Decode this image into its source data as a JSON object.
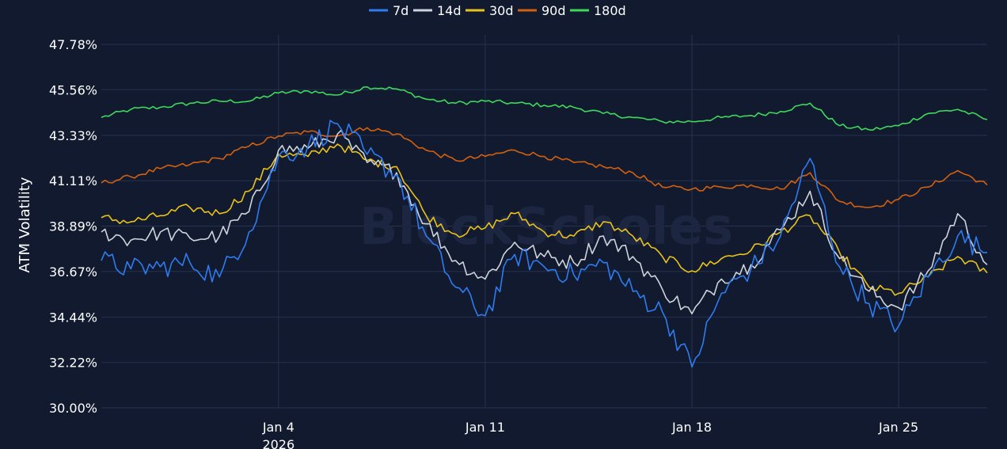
{
  "watermark": "BlockScholes",
  "chart_data": {
    "type": "line",
    "ylabel": "ATM Volatility",
    "xlabel": "",
    "ylim": [
      30.0,
      47.78
    ],
    "y_ticks": [
      "30.00%",
      "32.22%",
      "34.44%",
      "36.67%",
      "38.89%",
      "41.11%",
      "43.33%",
      "45.56%",
      "47.78%"
    ],
    "y_tick_values": [
      30.0,
      32.22,
      34.44,
      36.67,
      38.89,
      41.11,
      43.33,
      45.56,
      47.78
    ],
    "x_range": [
      "2025-12-29",
      "2026-01-28"
    ],
    "x_ticks": [
      {
        "date": "2026-01-04",
        "label": "Jan 4",
        "sublabel": "2026"
      },
      {
        "date": "2026-01-11",
        "label": "Jan 11",
        "sublabel": ""
      },
      {
        "date": "2026-01-18",
        "label": "Jan 18",
        "sublabel": ""
      },
      {
        "date": "2026-01-25",
        "label": "Jan 25",
        "sublabel": ""
      }
    ],
    "legend_position": "top-center",
    "grid": true,
    "x": [
      "2025-12-29",
      "2025-12-30",
      "2025-12-31",
      "2026-01-01",
      "2026-01-02",
      "2026-01-03",
      "2026-01-04",
      "2026-01-05",
      "2026-01-06",
      "2026-01-07",
      "2026-01-08",
      "2026-01-09",
      "2026-01-10",
      "2026-01-11",
      "2026-01-12",
      "2026-01-13",
      "2026-01-14",
      "2026-01-15",
      "2026-01-16",
      "2026-01-17",
      "2026-01-18",
      "2026-01-19",
      "2026-01-20",
      "2026-01-21",
      "2026-01-22",
      "2026-01-23",
      "2026-01-24",
      "2026-01-25",
      "2026-01-26",
      "2026-01-27",
      "2026-01-28"
    ],
    "series": [
      {
        "name": "7d",
        "color": "#2f7bf0",
        "values": [
          37.2,
          36.8,
          36.9,
          37.1,
          36.4,
          38.6,
          42.3,
          42.8,
          43.9,
          42.4,
          41.4,
          38.4,
          35.9,
          34.5,
          37.5,
          36.9,
          36.5,
          37.1,
          35.7,
          34.7,
          32.0,
          35.6,
          36.8,
          38.4,
          42.2,
          36.9,
          35.1,
          34.0,
          36.4,
          38.4,
          37.6
        ]
      },
      {
        "name": "14d",
        "color": "#cfd3dc",
        "values": [
          38.6,
          38.2,
          38.6,
          38.3,
          38.4,
          39.6,
          42.6,
          42.7,
          43.4,
          42.0,
          41.5,
          39.0,
          37.2,
          36.3,
          38.1,
          37.4,
          37.1,
          38.4,
          37.4,
          35.8,
          34.6,
          36.3,
          37.0,
          38.7,
          40.6,
          37.3,
          35.7,
          34.9,
          36.7,
          39.5,
          37.0
        ]
      },
      {
        "name": "30d",
        "color": "#e9c21b",
        "values": [
          39.3,
          39.1,
          39.4,
          39.8,
          39.5,
          40.6,
          42.4,
          42.3,
          42.9,
          42.1,
          41.8,
          39.4,
          38.5,
          38.8,
          39.5,
          38.6,
          38.4,
          39.1,
          38.4,
          37.4,
          36.7,
          37.3,
          37.7,
          38.6,
          39.4,
          37.6,
          35.9,
          35.6,
          36.4,
          37.4,
          36.6
        ]
      },
      {
        "name": "90d",
        "color": "#d3600f",
        "values": [
          41.0,
          41.3,
          41.7,
          41.9,
          42.2,
          42.8,
          43.3,
          43.5,
          43.3,
          43.7,
          43.4,
          42.6,
          42.1,
          42.3,
          42.6,
          42.3,
          42.0,
          41.8,
          41.5,
          40.8,
          40.7,
          40.8,
          40.9,
          40.7,
          41.5,
          40.1,
          39.8,
          40.2,
          40.8,
          41.6,
          40.9
        ]
      },
      {
        "name": "180d",
        "color": "#3fd85a",
        "values": [
          44.2,
          44.6,
          44.7,
          44.9,
          45.0,
          45.0,
          45.4,
          45.5,
          45.3,
          45.7,
          45.6,
          45.1,
          44.9,
          45.0,
          44.9,
          44.8,
          44.7,
          44.4,
          44.2,
          44.0,
          44.0,
          44.2,
          44.3,
          44.5,
          44.9,
          43.8,
          43.6,
          43.8,
          44.4,
          44.6,
          44.1
        ]
      }
    ]
  }
}
